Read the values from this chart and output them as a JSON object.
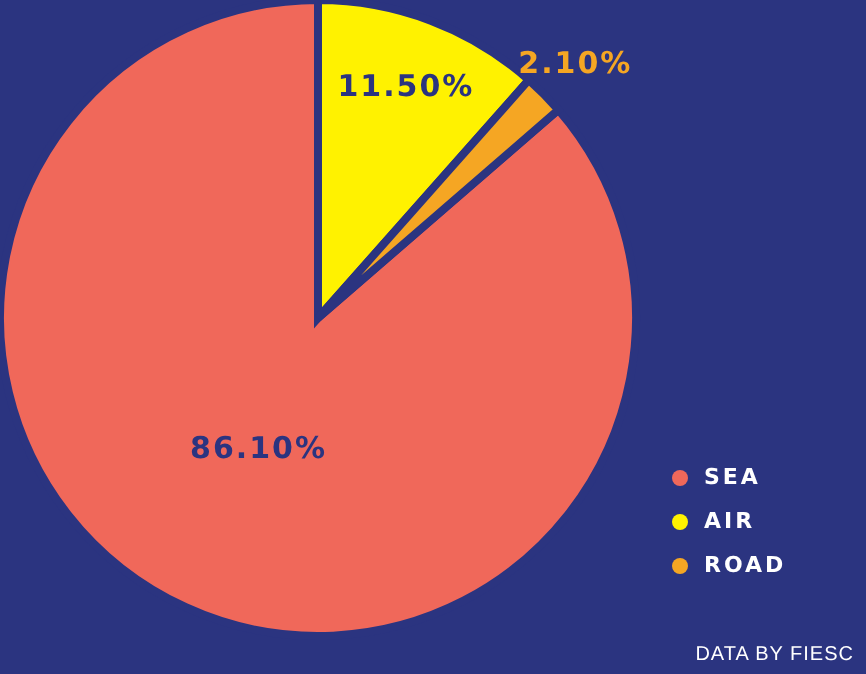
{
  "chart_data": {
    "type": "pie",
    "categories": [
      "SEA",
      "AIR",
      "ROAD"
    ],
    "values": [
      86.1,
      11.5,
      2.1
    ],
    "colors": [
      "#f0685a",
      "#fff200",
      "#f5a623"
    ],
    "value_labels": [
      "86.10%",
      "11.50%",
      "2.10%"
    ],
    "legend": "bottom right",
    "annotations": [
      "DATA BY FIESC"
    ]
  }
}
